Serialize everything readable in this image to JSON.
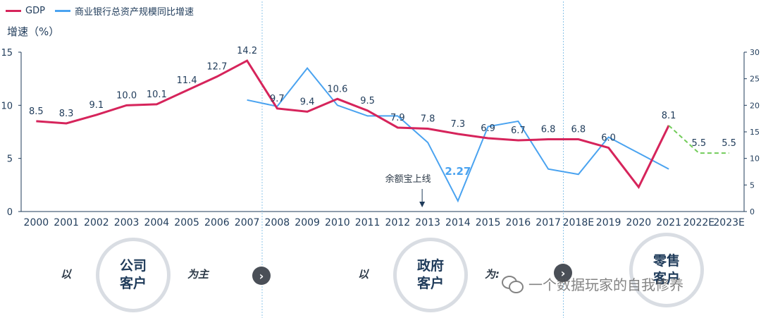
{
  "legend": {
    "gdp_label": "GDP",
    "asset_label": "商业银行总资产规模同比增速"
  },
  "y_axis_title": "增速（%）",
  "annotation": "余额宝上线",
  "stages": {
    "left_word": "以",
    "main_word": "为主",
    "main_word_partial": "为:",
    "arrow_glyph": "›",
    "circle1_line1": "公司",
    "circle1_line2": "客户",
    "circle2_line1": "政府",
    "circle2_line2": "客户",
    "circle3_line1": "零售",
    "circle3_line2": "客户"
  },
  "watermark": "一个数据玩家的自我修养",
  "colors": {
    "gdp": "#d6245b",
    "asset": "#4aa3f0",
    "forecast": "#72cc5a",
    "axis": "#1f3b5a",
    "text": "#1f3b5a",
    "divider": "#8cc4e8",
    "highlight": "#4aa3f0"
  },
  "chart_data": {
    "type": "line",
    "categories": [
      "2000",
      "2001",
      "2002",
      "2003",
      "2004",
      "2005",
      "2006",
      "2007",
      "2008",
      "2009",
      "2010",
      "2011",
      "2012",
      "2013",
      "2014",
      "2015",
      "2016",
      "2017",
      "2018E",
      "2019",
      "2020",
      "2021",
      "2022E",
      "2023E"
    ],
    "left_axis": {
      "ylim": [
        0,
        15
      ],
      "ticks": [
        0,
        5,
        10,
        15
      ]
    },
    "right_axis": {
      "ylim": [
        0,
        30
      ],
      "ticks": [
        0,
        5,
        10,
        15,
        20,
        25,
        30
      ]
    },
    "series": [
      {
        "name": "GDP",
        "axis": "left",
        "values": [
          8.5,
          8.3,
          9.1,
          10.0,
          10.1,
          11.4,
          12.7,
          14.2,
          9.7,
          9.4,
          10.6,
          9.5,
          7.9,
          7.8,
          7.3,
          6.9,
          6.7,
          6.8,
          6.8,
          6.0,
          2.3,
          8.1,
          5.5,
          5.5
        ],
        "labels": [
          "8.5",
          "8.3",
          "9.1",
          "10.0",
          "10.1",
          "11.4",
          "12.7",
          "14.2",
          "9.7",
          "9.4",
          "10.6",
          "9.5",
          "7.9",
          "7.8",
          "7.3",
          "6.9",
          "6.7",
          "6.8",
          "6.8",
          "6.0",
          "",
          "8.1",
          "5.5",
          "5.5"
        ],
        "forecast_from_index": 21
      },
      {
        "name": "商业银行总资产规模同比增速",
        "axis": "right",
        "values": [
          null,
          null,
          null,
          null,
          null,
          null,
          null,
          21,
          19.8,
          27,
          20,
          18,
          18,
          13,
          2,
          16,
          17,
          8,
          7,
          14,
          11,
          8,
          null,
          null
        ]
      }
    ],
    "callouts": [
      {
        "category": "2014",
        "text": "2.27"
      }
    ],
    "dividers_between": [
      [
        "2007",
        "2008"
      ],
      [
        "2017",
        "2018E"
      ]
    ],
    "grid": false
  }
}
